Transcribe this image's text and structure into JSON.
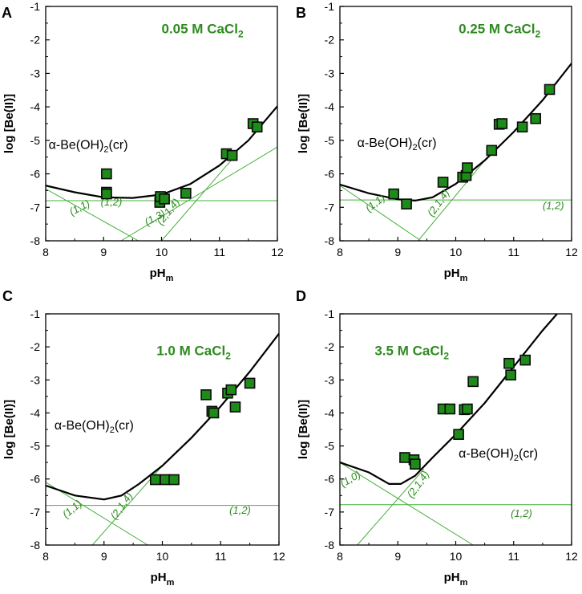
{
  "chart_data": [
    {
      "type": "scatter",
      "panel": "A",
      "title": "0.05 M CaCl",
      "title_sub": "2",
      "xlabel": "pH",
      "xlabel_sub": "m",
      "ylabel": "log [Be(II)]",
      "xlim": [
        8,
        12
      ],
      "ylim": [
        -8,
        -1
      ],
      "xticks": [
        "8",
        "9",
        "10",
        "11",
        "12"
      ],
      "yticks": [
        "-1",
        "-2",
        "-3",
        "-4",
        "-5",
        "-6",
        "-7",
        "-8"
      ],
      "phase_label": "α-Be(OH)",
      "phase_label_sub": "2",
      "phase_label_tail": "(cr)",
      "points": [
        [
          9.05,
          -6.0
        ],
        [
          9.05,
          -6.55
        ],
        [
          9.05,
          -6.6
        ],
        [
          9.97,
          -6.85
        ],
        [
          9.98,
          -6.68
        ],
        [
          10.05,
          -6.75
        ],
        [
          10.42,
          -6.58
        ],
        [
          11.12,
          -5.4
        ],
        [
          11.22,
          -5.45
        ],
        [
          11.58,
          -4.5
        ],
        [
          11.65,
          -4.6
        ]
      ],
      "total_curve": [
        [
          8.0,
          -6.35
        ],
        [
          8.5,
          -6.55
        ],
        [
          9.0,
          -6.7
        ],
        [
          9.5,
          -6.72
        ],
        [
          10.0,
          -6.62
        ],
        [
          10.5,
          -6.3
        ],
        [
          11.0,
          -5.75
        ],
        [
          11.5,
          -5.0
        ],
        [
          12.0,
          -3.98
        ]
      ],
      "species_lines": [
        {
          "label": "(1,1)",
          "pts": [
            [
              8.0,
              -6.45
            ],
            [
              9.6,
              -8.0
            ]
          ]
        },
        {
          "label": "(1,2)",
          "pts": [
            [
              8.0,
              -6.8
            ],
            [
              12.0,
              -6.8
            ]
          ]
        },
        {
          "label": "(1,3)",
          "pts": [
            [
              9.3,
              -8.0
            ],
            [
              12.0,
              -5.2
            ]
          ]
        },
        {
          "label": "(2,1,4)",
          "pts": [
            [
              10.0,
              -8.0
            ],
            [
              11.3,
              -5.4
            ]
          ]
        }
      ],
      "species_labels": [
        {
          "text": "(1,1)",
          "x": 8.45,
          "y": -7.25,
          "rot": -28
        },
        {
          "text": "(1,2)",
          "x": 8.95,
          "y": -6.95,
          "rot": 0
        },
        {
          "text": "(1,3)",
          "x": 9.75,
          "y": -7.55,
          "rot": -28
        },
        {
          "text": "(2,1,4)",
          "x": 10.0,
          "y": -7.55,
          "rot": -52
        }
      ],
      "phase_pos": [
        8.05,
        -5.25
      ],
      "title_pos": [
        10.0,
        -1.8
      ]
    },
    {
      "type": "scatter",
      "panel": "B",
      "title": "0.25 M CaCl",
      "title_sub": "2",
      "xlabel": "pH",
      "xlabel_sub": "m",
      "ylabel": "log [Be(II)]",
      "xlim": [
        8,
        12
      ],
      "ylim": [
        -8,
        -1
      ],
      "xticks": [
        "8",
        "9",
        "10",
        "11",
        "12"
      ],
      "yticks": [
        "-1",
        "-2",
        "-3",
        "-4",
        "-5",
        "-6",
        "-7",
        "-8"
      ],
      "phase_label": "α-Be(OH)",
      "phase_label_sub": "2",
      "phase_label_tail": "(cr)",
      "points": [
        [
          8.93,
          -6.6
        ],
        [
          9.15,
          -6.9
        ],
        [
          9.78,
          -6.25
        ],
        [
          10.12,
          -6.1
        ],
        [
          10.18,
          -6.05
        ],
        [
          10.2,
          -5.82
        ],
        [
          10.62,
          -5.3
        ],
        [
          10.75,
          -4.52
        ],
        [
          10.8,
          -4.5
        ],
        [
          11.15,
          -4.6
        ],
        [
          11.38,
          -4.35
        ],
        [
          11.62,
          -3.48
        ]
      ],
      "total_curve": [
        [
          8.0,
          -6.32
        ],
        [
          8.5,
          -6.58
        ],
        [
          9.0,
          -6.76
        ],
        [
          9.3,
          -6.8
        ],
        [
          9.6,
          -6.7
        ],
        [
          10.0,
          -6.3
        ],
        [
          10.5,
          -5.6
        ],
        [
          11.0,
          -4.75
        ],
        [
          11.5,
          -3.8
        ],
        [
          12.0,
          -2.7
        ]
      ],
      "species_lines": [
        {
          "label": "(1,1)",
          "pts": [
            [
              8.0,
              -6.35
            ],
            [
              9.4,
              -8.0
            ]
          ]
        },
        {
          "label": "(1,2)",
          "pts": [
            [
              8.0,
              -6.78
            ],
            [
              12.0,
              -6.78
            ]
          ]
        },
        {
          "label": "(2,1,4)",
          "pts": [
            [
              9.35,
              -8.0
            ],
            [
              10.5,
              -5.6
            ]
          ]
        }
      ],
      "species_labels": [
        {
          "text": "(1,1)",
          "x": 8.5,
          "y": -7.15,
          "rot": -38
        },
        {
          "text": "(2,1,4)",
          "x": 9.6,
          "y": -7.3,
          "rot": -55
        },
        {
          "text": "(1,2)",
          "x": 11.5,
          "y": -7.05,
          "rot": 0
        }
      ],
      "phase_pos": [
        8.3,
        -5.2
      ],
      "title_pos": [
        10.05,
        -1.8
      ]
    },
    {
      "type": "scatter",
      "panel": "C",
      "title": "1.0 M CaCl",
      "title_sub": "2",
      "xlabel": "pH",
      "xlabel_sub": "m",
      "ylabel": "log [Be(II)]",
      "xlim": [
        8,
        12
      ],
      "ylim": [
        -8,
        -1
      ],
      "xticks": [
        "8",
        "9",
        "10",
        "11",
        "12"
      ],
      "yticks": [
        "-1",
        "-2",
        "-3",
        "-4",
        "-5",
        "-6",
        "-7",
        "-8"
      ],
      "phase_label": "α-Be(OH)",
      "phase_label_sub": "2",
      "phase_label_tail": "(cr)",
      "points": [
        [
          9.88,
          -6.02
        ],
        [
          10.05,
          -6.02
        ],
        [
          10.2,
          -6.02
        ],
        [
          10.75,
          -3.45
        ],
        [
          10.85,
          -3.95
        ],
        [
          10.88,
          -4.0
        ],
        [
          11.12,
          -3.4
        ],
        [
          11.18,
          -3.3
        ],
        [
          11.25,
          -3.82
        ],
        [
          11.5,
          -3.1
        ]
      ],
      "total_curve": [
        [
          8.0,
          -6.2
        ],
        [
          8.5,
          -6.5
        ],
        [
          9.0,
          -6.62
        ],
        [
          9.3,
          -6.5
        ],
        [
          9.6,
          -6.15
        ],
        [
          10.0,
          -5.6
        ],
        [
          10.5,
          -4.75
        ],
        [
          11.0,
          -3.8
        ],
        [
          11.5,
          -2.75
        ],
        [
          12.0,
          -1.6
        ]
      ],
      "species_lines": [
        {
          "label": "(1,1)",
          "pts": [
            [
              8.0,
              -6.1
            ],
            [
              9.75,
              -8.0
            ]
          ]
        },
        {
          "label": "(1,2)",
          "pts": [
            [
              8.0,
              -6.8
            ],
            [
              12.0,
              -6.8
            ]
          ]
        },
        {
          "label": "(2,1,4)",
          "pts": [
            [
              8.8,
              -8.0
            ],
            [
              10.0,
              -5.6
            ]
          ]
        }
      ],
      "species_labels": [
        {
          "text": "(1,1)",
          "x": 8.35,
          "y": -7.2,
          "rot": -40
        },
        {
          "text": "(2,1,4)",
          "x": 9.2,
          "y": -7.25,
          "rot": -55
        },
        {
          "text": "(1,2)",
          "x": 11.15,
          "y": -7.05,
          "rot": 0
        }
      ],
      "phase_pos": [
        8.15,
        -4.5
      ],
      "title_pos": [
        9.9,
        -2.25
      ]
    },
    {
      "type": "scatter",
      "panel": "D",
      "title": "3.5 M CaCl",
      "title_sub": "2",
      "xlabel": "pH",
      "xlabel_sub": "m",
      "ylabel": "log [Be(II)]",
      "xlim": [
        8,
        12
      ],
      "ylim": [
        -8,
        -1
      ],
      "xticks": [
        "8",
        "9",
        "10",
        "11",
        "12"
      ],
      "yticks": [
        "-1",
        "-2",
        "-3",
        "-4",
        "-5",
        "-6",
        "-7",
        "-8"
      ],
      "phase_label": "α-Be(OH)",
      "phase_label_sub": "2",
      "phase_label_tail": "(cr)",
      "points": [
        [
          9.12,
          -5.35
        ],
        [
          9.28,
          -5.42
        ],
        [
          9.3,
          -5.55
        ],
        [
          9.78,
          -3.88
        ],
        [
          9.9,
          -3.88
        ],
        [
          10.05,
          -4.65
        ],
        [
          10.15,
          -3.9
        ],
        [
          10.2,
          -3.88
        ],
        [
          10.3,
          -3.05
        ],
        [
          10.92,
          -2.5
        ],
        [
          10.95,
          -2.85
        ],
        [
          11.2,
          -2.4
        ]
      ],
      "total_curve": [
        [
          8.0,
          -5.5
        ],
        [
          8.5,
          -5.8
        ],
        [
          8.85,
          -6.15
        ],
        [
          9.05,
          -6.15
        ],
        [
          9.3,
          -5.9
        ],
        [
          9.6,
          -5.35
        ],
        [
          10.0,
          -4.65
        ],
        [
          10.5,
          -3.7
        ],
        [
          11.0,
          -2.6
        ],
        [
          11.5,
          -1.5
        ],
        [
          11.75,
          -1.0
        ]
      ],
      "species_lines": [
        {
          "label": "(1,0)",
          "pts": [
            [
              8.0,
              -5.5
            ],
            [
              10.3,
              -8.0
            ]
          ]
        },
        {
          "label": "(1,2)",
          "pts": [
            [
              8.0,
              -6.78
            ],
            [
              12.0,
              -6.78
            ]
          ]
        },
        {
          "label": "(2,1,4)",
          "pts": [
            [
              8.3,
              -8.0
            ],
            [
              9.45,
              -5.7
            ]
          ]
        }
      ],
      "species_labels": [
        {
          "text": "(1,0)",
          "x": 8.05,
          "y": -6.25,
          "rot": -30
        },
        {
          "text": "(2,1,4)",
          "x": 9.25,
          "y": -6.6,
          "rot": -55
        },
        {
          "text": "(1,2)",
          "x": 10.95,
          "y": -7.15,
          "rot": 0
        }
      ],
      "phase_pos": [
        10.05,
        -5.35
      ],
      "title_pos": [
        8.6,
        -2.25
      ]
    }
  ],
  "colors": {
    "marker_fill": "#1e8a1a",
    "marker_edge": "#0a0a0a",
    "species_line": "#44b03a",
    "species_text": "#2e8b1f",
    "curve": "#000000"
  }
}
